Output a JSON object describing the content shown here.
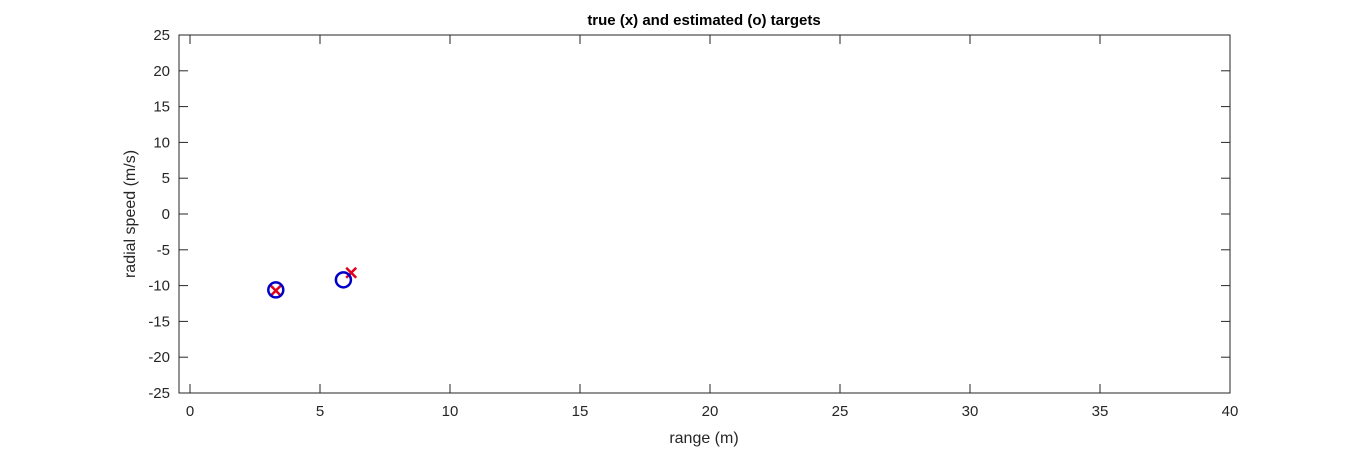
{
  "chart_data": {
    "type": "scatter",
    "title": "true (x) and estimated (o) targets",
    "xlabel": "range (m)",
    "ylabel": "radial speed (m/s)",
    "xlim": [
      0,
      40
    ],
    "ylim": [
      -25,
      25
    ],
    "xticks": [
      0,
      5,
      10,
      15,
      20,
      25,
      30,
      35,
      40
    ],
    "yticks": [
      25,
      20,
      15,
      10,
      5,
      0,
      -5,
      -10,
      -15,
      -20,
      -25
    ],
    "grid": false,
    "series": [
      {
        "marker": "x",
        "color": "#e3001b",
        "points": [
          {
            "x": 3.3,
            "y": -10.7
          },
          {
            "x": 6.2,
            "y": -8.2
          }
        ]
      },
      {
        "marker": "o",
        "color": "#0000c8",
        "points": [
          {
            "x": 3.3,
            "y": -10.6
          },
          {
            "x": 5.9,
            "y": -9.2
          }
        ]
      }
    ]
  }
}
